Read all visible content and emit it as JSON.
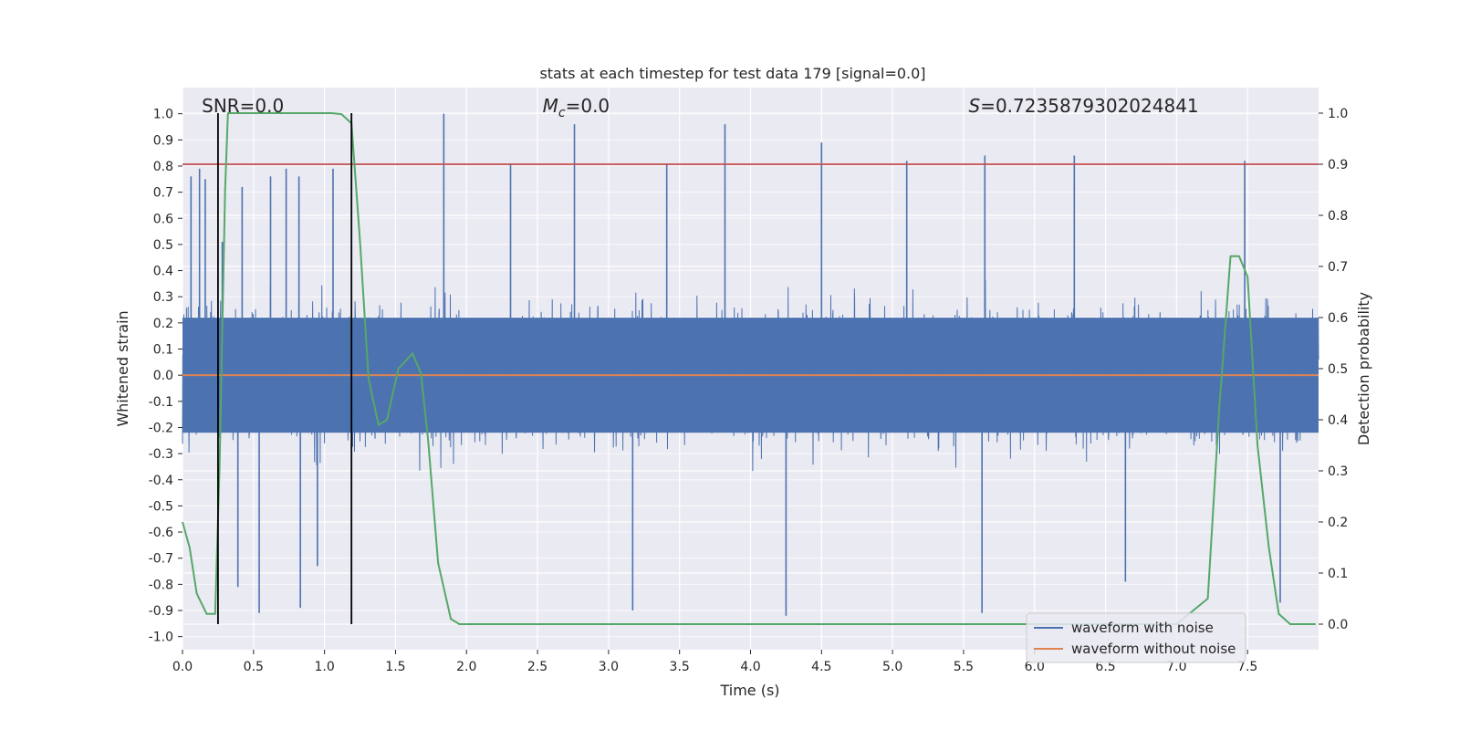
{
  "chart_data": {
    "type": "line",
    "title": "stats at each timestep for test data 179 [signal=0.0]",
    "xlabel": "Time (s)",
    "ylabel_left": "Whitened strain",
    "ylabel_right": "Detection probability",
    "xlim": [
      0.0,
      8.0
    ],
    "ylim_left": [
      -1.05,
      1.1
    ],
    "ylim_right": [
      -0.05,
      1.05
    ],
    "xticks": [
      0.0,
      0.5,
      1.0,
      1.5,
      2.0,
      2.5,
      3.0,
      3.5,
      4.0,
      4.5,
      5.0,
      5.5,
      6.0,
      6.5,
      7.0,
      7.5
    ],
    "yticks_left": [
      -1.0,
      -0.9,
      -0.8,
      -0.7,
      -0.6,
      -0.5,
      -0.4,
      -0.3,
      -0.2,
      -0.1,
      0.0,
      0.1,
      0.2,
      0.3,
      0.4,
      0.5,
      0.6,
      0.7,
      0.8,
      0.9,
      1.0
    ],
    "yticks_right": [
      0.0,
      0.1,
      0.2,
      0.3,
      0.4,
      0.5,
      0.6,
      0.7,
      0.8,
      0.9,
      1.0
    ],
    "grid": true,
    "legend_position": "lower-right",
    "annotations": [
      {
        "text": "SNR=0.0",
        "x": 0.2
      },
      {
        "text": "M_c=0.0",
        "x": 2.6
      },
      {
        "text": "S=0.7235879302024841",
        "x": 5.6
      }
    ],
    "series": [
      {
        "name": "waveform with noise",
        "axis": "left",
        "color": "#4c72b0",
        "style": "dense noise, amplitude ~±0.4 with spikes",
        "spikes": [
          {
            "x": 0.06,
            "y": 0.76
          },
          {
            "x": 0.12,
            "y": 0.79
          },
          {
            "x": 0.16,
            "y": 0.75
          },
          {
            "x": 0.28,
            "y": 0.51
          },
          {
            "x": 0.42,
            "y": 0.72
          },
          {
            "x": 0.62,
            "y": 0.76
          },
          {
            "x": 0.73,
            "y": 0.79
          },
          {
            "x": 0.82,
            "y": 0.76
          },
          {
            "x": 1.06,
            "y": 0.79
          },
          {
            "x": 1.84,
            "y": 1.0
          },
          {
            "x": 2.31,
            "y": 0.81
          },
          {
            "x": 2.76,
            "y": 0.96
          },
          {
            "x": 3.41,
            "y": 0.81
          },
          {
            "x": 3.82,
            "y": 0.96
          },
          {
            "x": 4.5,
            "y": 0.89
          },
          {
            "x": 5.1,
            "y": 0.82
          },
          {
            "x": 5.65,
            "y": 0.84
          },
          {
            "x": 6.28,
            "y": 0.84
          },
          {
            "x": 7.48,
            "y": 0.82
          },
          {
            "x": 0.54,
            "y": -0.91
          },
          {
            "x": 0.39,
            "y": -0.81
          },
          {
            "x": 0.83,
            "y": -0.89
          },
          {
            "x": 0.95,
            "y": -0.73
          },
          {
            "x": 3.17,
            "y": -0.9
          },
          {
            "x": 4.25,
            "y": -0.92
          },
          {
            "x": 5.63,
            "y": -0.91
          },
          {
            "x": 6.64,
            "y": -0.79
          },
          {
            "x": 7.73,
            "y": -0.87
          }
        ]
      },
      {
        "name": "waveform without noise",
        "axis": "left",
        "color": "#dd8452",
        "x": [
          0.0,
          8.0
        ],
        "y": [
          0.0,
          0.0
        ]
      },
      {
        "name": "",
        "axis": "right",
        "color": "#55a868",
        "x": [
          0.0,
          0.05,
          0.1,
          0.17,
          0.23,
          0.26,
          0.3,
          0.32,
          0.4,
          0.6,
          0.9,
          1.05,
          1.12,
          1.19,
          1.25,
          1.31,
          1.38,
          1.44,
          1.52,
          1.62,
          1.68,
          1.73,
          1.8,
          1.89,
          1.95,
          2.1,
          3.0,
          4.0,
          5.0,
          6.0,
          7.0,
          7.22,
          7.3,
          7.38,
          7.44,
          7.5,
          7.57,
          7.65,
          7.72,
          7.8,
          7.9,
          7.98
        ],
        "y": [
          0.2,
          0.15,
          0.06,
          0.02,
          0.02,
          0.3,
          0.85,
          1.0,
          1.0,
          1.0,
          1.0,
          1.0,
          0.998,
          0.98,
          0.75,
          0.48,
          0.39,
          0.4,
          0.5,
          0.53,
          0.49,
          0.36,
          0.12,
          0.01,
          0.0,
          0.0,
          0.0,
          0.0,
          0.0,
          0.0,
          0.0,
          0.05,
          0.42,
          0.72,
          0.72,
          0.68,
          0.35,
          0.15,
          0.02,
          0.0,
          0.0,
          0.0
        ]
      }
    ],
    "threshold_line": {
      "axis": "right",
      "y": 0.9,
      "color": "#c44e52"
    },
    "vertical_lines": [
      {
        "x": 0.25,
        "y_from": 0.0,
        "y_to": 1.0,
        "color": "#000000"
      },
      {
        "x": 1.19,
        "y_from": 0.0,
        "y_to": 1.0,
        "color": "#000000"
      }
    ]
  }
}
